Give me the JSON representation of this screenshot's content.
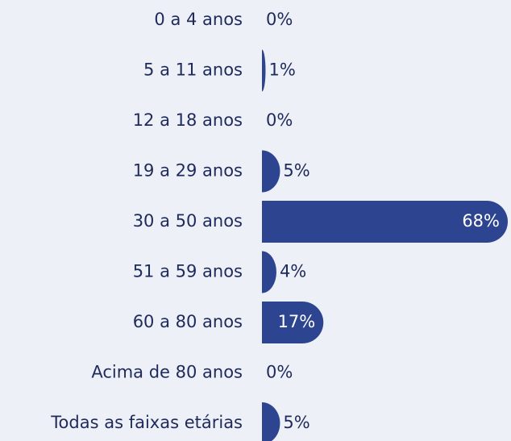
{
  "chart_data": {
    "type": "bar",
    "orientation": "horizontal",
    "categories": [
      "0 a 4 anos",
      "5 a 11 anos",
      "12 a 18 anos",
      "19 a 29 anos",
      "30 a 50 anos",
      "51 a 59 anos",
      "60 a 80 anos",
      "Acima de 80 anos",
      "Todas as faixas etárias"
    ],
    "values": [
      0,
      1,
      0,
      5,
      68,
      4,
      17,
      0,
      5
    ],
    "value_labels": [
      "0%",
      "1%",
      "0%",
      "5%",
      "68%",
      "4%",
      "17%",
      "0%",
      "5%"
    ],
    "color": "#2d4591"
  }
}
